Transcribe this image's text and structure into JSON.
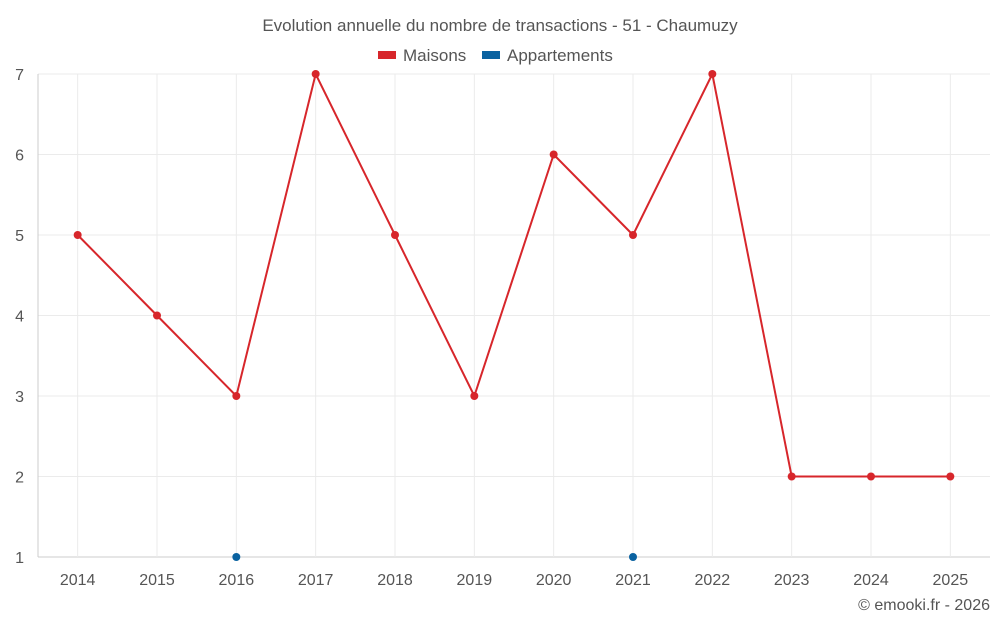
{
  "chart_data": {
    "type": "line",
    "title": "Evolution annuelle du nombre de transactions - 51 - Chaumuzy",
    "xlabel": "",
    "ylabel": "",
    "categories": [
      "2014",
      "2015",
      "2016",
      "2017",
      "2018",
      "2019",
      "2020",
      "2021",
      "2022",
      "2023",
      "2024",
      "2025"
    ],
    "ylim": [
      1,
      7
    ],
    "yticks": [
      1,
      2,
      3,
      4,
      5,
      6,
      7
    ],
    "grid": true,
    "legend_position": "top-center",
    "series": [
      {
        "name": "Maisons",
        "color": "#d7262b",
        "values": [
          5,
          4,
          3,
          7,
          5,
          3,
          6,
          5,
          7,
          2,
          2,
          2
        ]
      },
      {
        "name": "Appartements",
        "color": "#0a62a0",
        "values": [
          null,
          null,
          1,
          null,
          null,
          null,
          null,
          1,
          null,
          null,
          null,
          null
        ]
      }
    ],
    "credit": "© emooki.fr - 2026"
  }
}
